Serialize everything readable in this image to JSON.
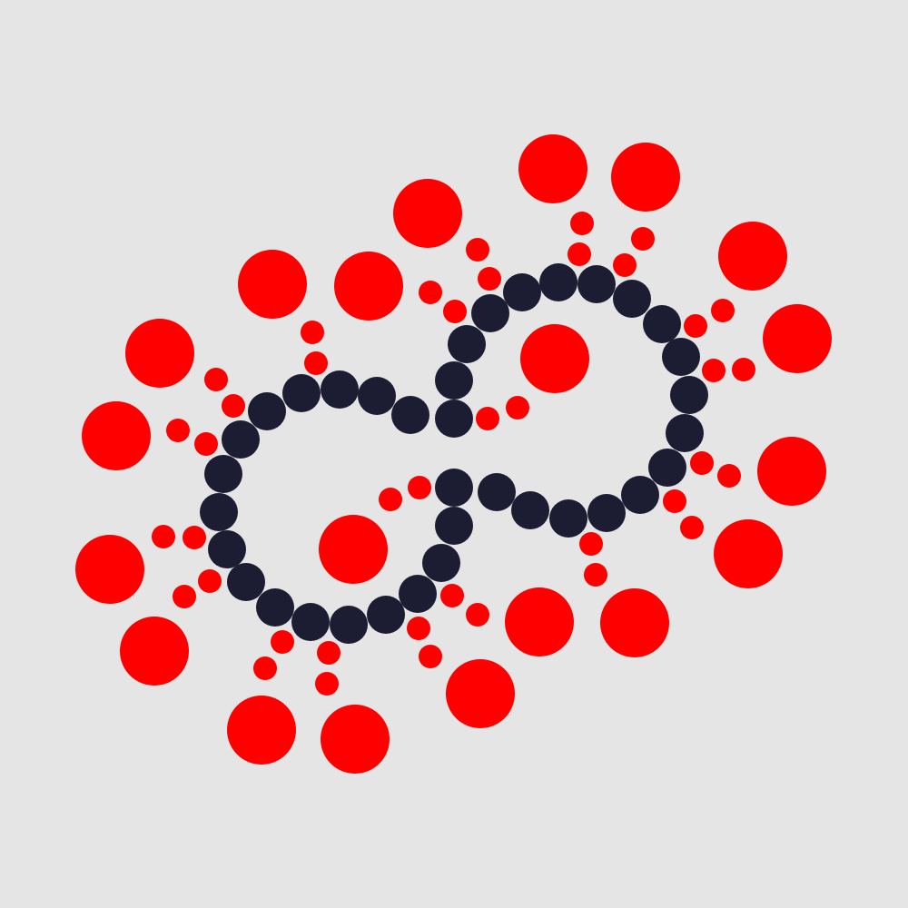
{
  "colors": {
    "background": "#e5e5e5",
    "dark_dot": "#1c1c33",
    "red_dot": "#ff0000"
  },
  "dot_kinds": [
    "dark-chain",
    "red-small",
    "red-large"
  ]
}
